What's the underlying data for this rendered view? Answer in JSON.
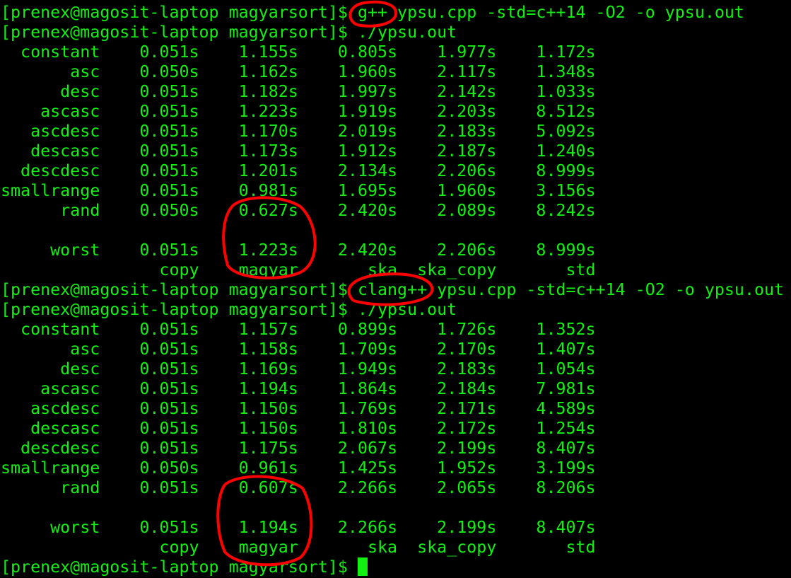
{
  "prompt": "[prenex@magosit-laptop magyarsort]$ ",
  "colors": {
    "text": "#12f012",
    "background": "#000000",
    "annotation": "#ff0000"
  },
  "runs": [
    {
      "compile_command": "g++ ypsu.cpp -std=c++14 -O2 -o ypsu.out",
      "run_command": "./ypsu.out",
      "rows": [
        {
          "name": "constant",
          "values": [
            "0.051s",
            "1.155s",
            "0.805s",
            "1.977s",
            "1.172s"
          ]
        },
        {
          "name": "asc",
          "values": [
            "0.050s",
            "1.162s",
            "1.960s",
            "2.117s",
            "1.348s"
          ]
        },
        {
          "name": "desc",
          "values": [
            "0.051s",
            "1.182s",
            "1.997s",
            "2.142s",
            "1.033s"
          ]
        },
        {
          "name": "ascasc",
          "values": [
            "0.051s",
            "1.223s",
            "1.919s",
            "2.203s",
            "8.512s"
          ]
        },
        {
          "name": "ascdesc",
          "values": [
            "0.051s",
            "1.170s",
            "2.019s",
            "2.183s",
            "5.092s"
          ]
        },
        {
          "name": "descasc",
          "values": [
            "0.051s",
            "1.173s",
            "1.912s",
            "2.187s",
            "1.240s"
          ]
        },
        {
          "name": "descdesc",
          "values": [
            "0.051s",
            "1.201s",
            "2.134s",
            "2.206s",
            "8.999s"
          ]
        },
        {
          "name": "smallrange",
          "values": [
            "0.051s",
            "0.981s",
            "1.695s",
            "1.960s",
            "3.156s"
          ]
        },
        {
          "name": "rand",
          "values": [
            "0.050s",
            "0.627s",
            "2.420s",
            "2.089s",
            "8.242s"
          ]
        }
      ],
      "worst": {
        "name": "worst",
        "values": [
          "0.051s",
          "1.223s",
          "2.420s",
          "2.206s",
          "8.999s"
        ]
      },
      "headers": [
        "copy",
        "magyar",
        "ska",
        "ska_copy",
        "std"
      ]
    },
    {
      "compile_command": "clang++ ypsu.cpp -std=c++14 -O2 -o ypsu.out",
      "run_command": "./ypsu.out",
      "rows": [
        {
          "name": "constant",
          "values": [
            "0.051s",
            "1.157s",
            "0.899s",
            "1.726s",
            "1.352s"
          ]
        },
        {
          "name": "asc",
          "values": [
            "0.051s",
            "1.158s",
            "1.709s",
            "2.170s",
            "1.407s"
          ]
        },
        {
          "name": "desc",
          "values": [
            "0.051s",
            "1.169s",
            "1.949s",
            "2.183s",
            "1.054s"
          ]
        },
        {
          "name": "ascasc",
          "values": [
            "0.051s",
            "1.194s",
            "1.864s",
            "2.184s",
            "7.981s"
          ]
        },
        {
          "name": "ascdesc",
          "values": [
            "0.051s",
            "1.150s",
            "1.769s",
            "2.171s",
            "4.589s"
          ]
        },
        {
          "name": "descasc",
          "values": [
            "0.051s",
            "1.150s",
            "1.810s",
            "2.172s",
            "1.254s"
          ]
        },
        {
          "name": "descdesc",
          "values": [
            "0.051s",
            "1.175s",
            "2.067s",
            "2.199s",
            "8.407s"
          ]
        },
        {
          "name": "smallrange",
          "values": [
            "0.050s",
            "0.961s",
            "1.425s",
            "1.952s",
            "3.199s"
          ]
        },
        {
          "name": "rand",
          "values": [
            "0.051s",
            "0.607s",
            "2.266s",
            "2.065s",
            "8.206s"
          ]
        }
      ],
      "worst": {
        "name": "worst",
        "values": [
          "0.051s",
          "1.194s",
          "2.266s",
          "2.199s",
          "8.407s"
        ]
      },
      "headers": [
        "copy",
        "magyar",
        "ska",
        "ska_copy",
        "std"
      ]
    }
  ]
}
